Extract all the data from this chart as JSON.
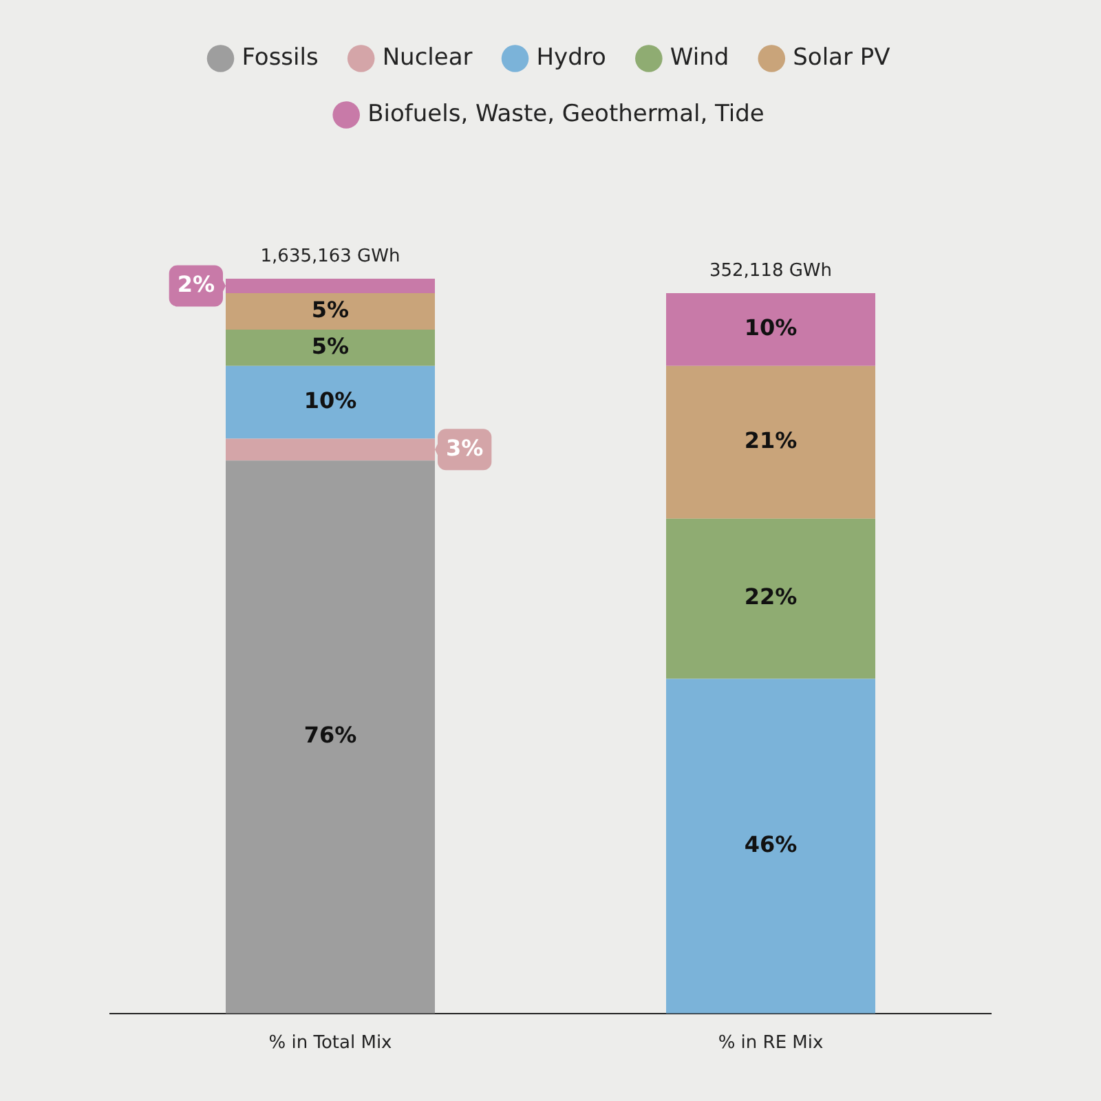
{
  "chart_data": {
    "type": "bar",
    "stacked": true,
    "legend": "top",
    "grid": false,
    "tick_labels": "x",
    "data_labels": true,
    "categories": [
      "% in Total Mix",
      "% in RE Mix"
    ],
    "series": [
      {
        "name": "Fossils",
        "color": "#9e9e9e",
        "values": [
          76,
          null
        ],
        "value_labels": [
          "76%",
          null
        ]
      },
      {
        "name": "Nuclear",
        "color": "#d4a5a8",
        "values": [
          3,
          null
        ],
        "value_labels": [
          "3%",
          null
        ]
      },
      {
        "name": "Hydro",
        "color": "#7bb3d9",
        "values": [
          10,
          46
        ],
        "value_labels": [
          "10%",
          "46%"
        ]
      },
      {
        "name": "Wind",
        "color": "#8fac72",
        "values": [
          5,
          22
        ],
        "value_labels": [
          "5%",
          "22%"
        ]
      },
      {
        "name": "Solar PV",
        "color": "#c9a47a",
        "values": [
          5,
          21
        ],
        "value_labels": [
          "5%",
          "21%"
        ]
      },
      {
        "name": "Biofuels, Waste, Geothermal, Tide",
        "color": "#c87aa8",
        "values": [
          2,
          10
        ],
        "value_labels": [
          "2%",
          "10%"
        ]
      }
    ],
    "annotations": [
      {
        "text": "1,635,163 GWh",
        "x": "% in Total Mix",
        "y": 101
      },
      {
        "text": "352,118 GWh",
        "x": "% in RE Mix",
        "y": 99
      }
    ]
  }
}
